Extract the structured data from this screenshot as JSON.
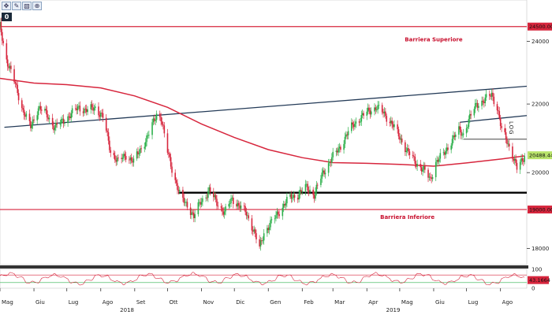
{
  "toolbar": {
    "buttons": [
      {
        "icon": "move-icon",
        "glyph": "✥"
      },
      {
        "icon": "pencil-icon",
        "glyph": "✎"
      },
      {
        "icon": "image-icon",
        "glyph": "▧"
      },
      {
        "icon": "zoom-icon",
        "glyph": "⊕"
      }
    ],
    "zero_label": "0"
  },
  "chart_data": {
    "type": "line",
    "scale": "log",
    "ylim": [
      17600,
      25200
    ],
    "xlim": [
      "2018-05-01",
      "2019-08-25"
    ],
    "y_ticks": [
      "24000",
      "22000",
      "20000",
      "18000"
    ],
    "side_label": "LOG",
    "x_ticks": [
      {
        "label": "Mag",
        "date": "2018-05-01"
      },
      {
        "label": "Giu",
        "date": "2018-06-01"
      },
      {
        "label": "Lug",
        "date": "2018-07-01"
      },
      {
        "label": "Ago",
        "date": "2018-08-01"
      },
      {
        "label": "Set",
        "date": "2018-09-01"
      },
      {
        "label": "Ott",
        "date": "2018-10-01"
      },
      {
        "label": "Nov",
        "date": "2018-11-01"
      },
      {
        "label": "Dic",
        "date": "2018-12-01"
      },
      {
        "label": "Gen",
        "date": "2019-01-01"
      },
      {
        "label": "Feb",
        "date": "2019-02-01"
      },
      {
        "label": "Mar",
        "date": "2019-03-01"
      },
      {
        "label": "Apr",
        "date": "2019-04-01"
      },
      {
        "label": "Mag",
        "date": "2019-05-01"
      },
      {
        "label": "Giu",
        "date": "2019-06-01"
      },
      {
        "label": "Lug",
        "date": "2019-07-01"
      },
      {
        "label": "Ago",
        "date": "2019-08-01"
      }
    ],
    "years": [
      {
        "label": "2018",
        "date": "2018-08-25"
      },
      {
        "label": "2019",
        "date": "2019-04-25"
      }
    ],
    "price_path": [
      [
        "2018-05-01",
        24500
      ],
      [
        "2018-05-07",
        23400
      ],
      [
        "2018-05-15",
        22600
      ],
      [
        "2018-05-22",
        21800
      ],
      [
        "2018-05-29",
        21300
      ],
      [
        "2018-06-05",
        21900
      ],
      [
        "2018-06-12",
        21700
      ],
      [
        "2018-06-20",
        21300
      ],
      [
        "2018-06-28",
        21500
      ],
      [
        "2018-07-05",
        21700
      ],
      [
        "2018-07-12",
        21900
      ],
      [
        "2018-07-20",
        21800
      ],
      [
        "2018-07-27",
        21900
      ],
      [
        "2018-08-03",
        21600
      ],
      [
        "2018-08-10",
        20600
      ],
      [
        "2018-08-17",
        20300
      ],
      [
        "2018-08-24",
        20500
      ],
      [
        "2018-08-31",
        20300
      ],
      [
        "2018-09-07",
        20700
      ],
      [
        "2018-09-14",
        21100
      ],
      [
        "2018-09-21",
        21700
      ],
      [
        "2018-09-25",
        21600
      ],
      [
        "2018-09-30",
        20700
      ],
      [
        "2018-10-06",
        20000
      ],
      [
        "2018-10-13",
        19300
      ],
      [
        "2018-10-20",
        19100
      ],
      [
        "2018-10-25",
        18800
      ],
      [
        "2018-10-31",
        19200
      ],
      [
        "2018-11-08",
        19500
      ],
      [
        "2018-11-15",
        19200
      ],
      [
        "2018-11-22",
        18900
      ],
      [
        "2018-11-29",
        19300
      ],
      [
        "2018-12-05",
        19100
      ],
      [
        "2018-12-12",
        18900
      ],
      [
        "2018-12-18",
        18500
      ],
      [
        "2018-12-24",
        18000
      ],
      [
        "2018-12-28",
        18400
      ],
      [
        "2019-01-05",
        18700
      ],
      [
        "2019-01-12",
        19000
      ],
      [
        "2019-01-20",
        19300
      ],
      [
        "2019-01-28",
        19400
      ],
      [
        "2019-02-05",
        19600
      ],
      [
        "2019-02-12",
        19400
      ],
      [
        "2019-02-20",
        20000
      ],
      [
        "2019-02-28",
        20400
      ],
      [
        "2019-03-07",
        20700
      ],
      [
        "2019-03-14",
        21100
      ],
      [
        "2019-03-20",
        21400
      ],
      [
        "2019-03-27",
        21600
      ],
      [
        "2019-04-03",
        21800
      ],
      [
        "2019-04-10",
        21900
      ],
      [
        "2019-04-17",
        21700
      ],
      [
        "2019-04-24",
        21400
      ],
      [
        "2019-05-01",
        21000
      ],
      [
        "2019-05-08",
        20600
      ],
      [
        "2019-05-15",
        20300
      ],
      [
        "2019-05-22",
        20100
      ],
      [
        "2019-05-29",
        19800
      ],
      [
        "2019-06-03",
        20300
      ],
      [
        "2019-06-10",
        20500
      ],
      [
        "2019-06-17",
        20900
      ],
      [
        "2019-06-24",
        21200
      ],
      [
        "2019-06-28",
        21100
      ],
      [
        "2019-07-03",
        21500
      ],
      [
        "2019-07-10",
        22000
      ],
      [
        "2019-07-17",
        22100
      ],
      [
        "2019-07-24",
        22300
      ],
      [
        "2019-07-29",
        21900
      ],
      [
        "2019-08-02",
        21200
      ],
      [
        "2019-08-07",
        20900
      ],
      [
        "2019-08-12",
        20500
      ],
      [
        "2019-08-16",
        20100
      ],
      [
        "2019-08-20",
        20300
      ],
      [
        "2019-08-23",
        20488
      ]
    ],
    "ma_path": [
      [
        "2018-05-01",
        22800
      ],
      [
        "2018-06-01",
        22650
      ],
      [
        "2018-07-01",
        22600
      ],
      [
        "2018-08-01",
        22500
      ],
      [
        "2018-09-01",
        22250
      ],
      [
        "2018-10-01",
        21900
      ],
      [
        "2018-11-01",
        21400
      ],
      [
        "2018-12-01",
        21000
      ],
      [
        "2019-01-01",
        20650
      ],
      [
        "2019-02-01",
        20420
      ],
      [
        "2019-03-01",
        20280
      ],
      [
        "2019-04-01",
        20260
      ],
      [
        "2019-05-01",
        20230
      ],
      [
        "2019-06-01",
        20180
      ],
      [
        "2019-07-01",
        20270
      ],
      [
        "2019-08-01",
        20380
      ],
      [
        "2019-08-23",
        20470
      ]
    ],
    "horizontal_levels": [
      {
        "value": 24500,
        "tag": "24500.0000",
        "label": "Barriera Superiore",
        "label_date": "2019-06-01",
        "label_value": 24000,
        "color": "#d7263d"
      },
      {
        "value": 19000,
        "tag": "19000.0000",
        "label": "Barriera Inferiore",
        "label_date": "2019-05-08",
        "label_value": 18750,
        "color": "#d7263d"
      }
    ],
    "current_value": {
      "tag": "20488.4414",
      "value": 20488,
      "color": "#b9e36b"
    },
    "trendlines": [
      {
        "from": [
          "2018-05-05",
          21300
        ],
        "to": [
          "2019-08-25",
          22550
        ],
        "color": "#233a57"
      },
      {
        "from": [
          "2019-06-25",
          21450
        ],
        "to": [
          "2019-08-25",
          21650
        ],
        "color": "#233a57"
      }
    ],
    "support_lines": [
      {
        "from": [
          "2018-10-11",
          19450
        ],
        "to": [
          "2019-08-25",
          19450
        ],
        "color": "#000000",
        "width": 2.4
      },
      {
        "from": [
          "2019-06-28",
          20950
        ],
        "to": [
          "2019-08-25",
          20950
        ],
        "color": "#444444",
        "width": 1.0
      }
    ],
    "oscillator": {
      "ylim": [
        0,
        100
      ],
      "ticks": [
        "100",
        "0"
      ],
      "current_tag": "43.1664",
      "current_value": 43,
      "color": "#d7263d",
      "band_colors": [
        "#d7263d",
        "#2db04b"
      ],
      "bands": [
        70,
        30
      ]
    },
    "colors": {
      "up": "#2db04b",
      "down": "#d7263d",
      "ma": "#d7263d",
      "level": "#d7263d"
    }
  }
}
